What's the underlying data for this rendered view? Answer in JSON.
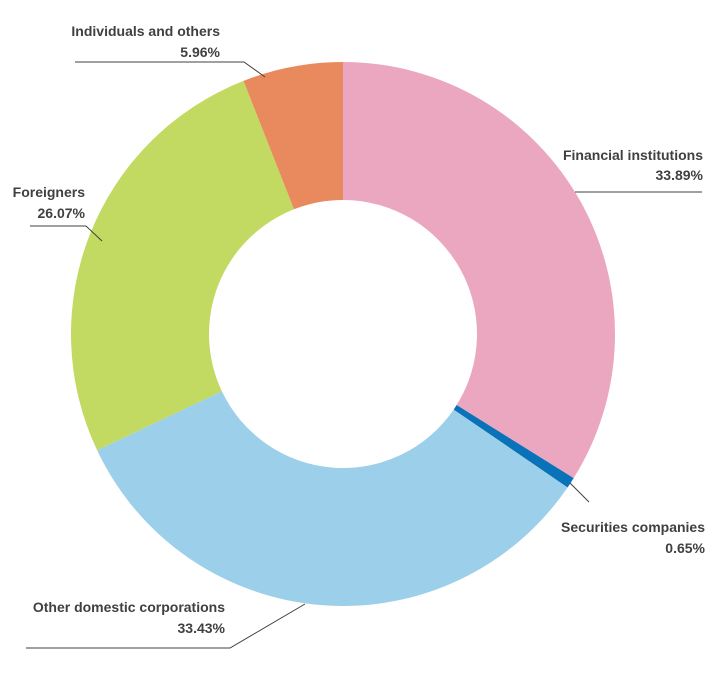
{
  "chart_data": {
    "type": "pie",
    "donut": true,
    "start": "top",
    "direction": "clockwise",
    "slices": [
      {
        "name": "Financial institutions",
        "value": 33.89,
        "label": "33.89%",
        "color": "#EAA7BF"
      },
      {
        "name": "Securities companies",
        "value": 0.65,
        "label": "0.65%",
        "color": "#0A72B8"
      },
      {
        "name": "Other domestic corporations",
        "value": 33.43,
        "label": "33.43%",
        "color": "#9CCFE9"
      },
      {
        "name": "Foreigners",
        "value": 26.07,
        "label": "26.07%",
        "color": "#C2D962"
      },
      {
        "name": "Individuals and others",
        "value": 5.96,
        "label": "5.96%",
        "color": "#E88A5E"
      }
    ]
  }
}
